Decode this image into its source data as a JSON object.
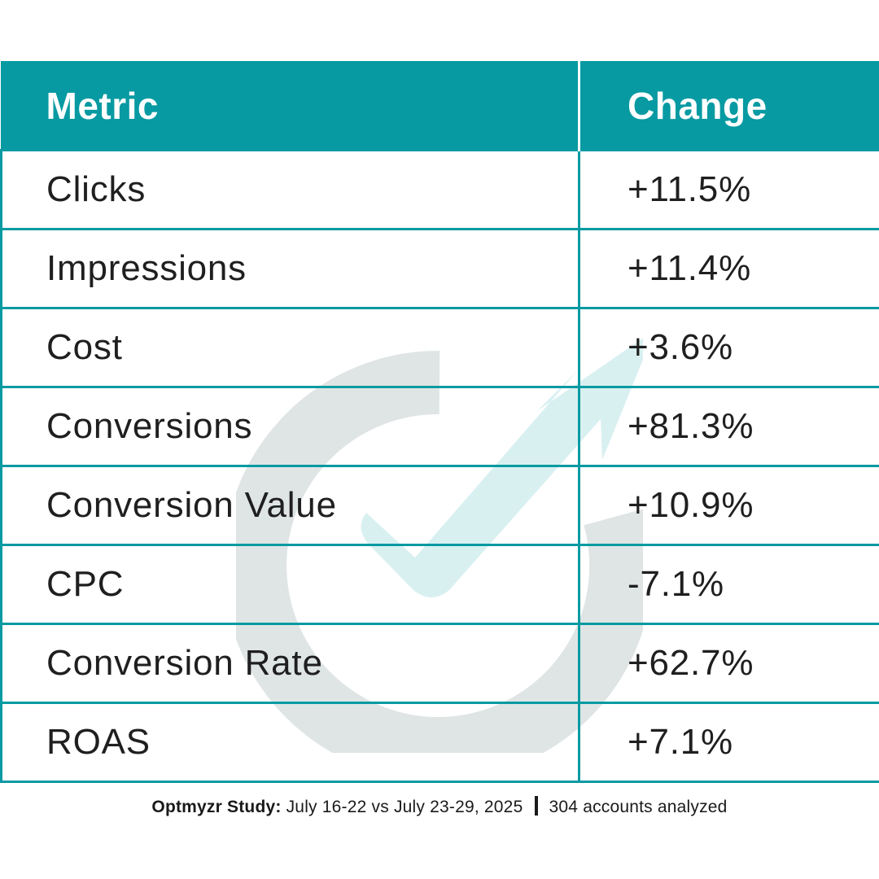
{
  "chart_data": {
    "type": "table",
    "columns": [
      "Metric",
      "Change"
    ],
    "rows": [
      {
        "metric": "Clicks",
        "change": "+11.5%"
      },
      {
        "metric": "Impressions",
        "change": "+11.4%"
      },
      {
        "metric": "Cost",
        "change": "+3.6%"
      },
      {
        "metric": "Conversions",
        "change": "+81.3%"
      },
      {
        "metric": "Conversion Value",
        "change": "+10.9%"
      },
      {
        "metric": "CPC",
        "change": "-7.1%"
      },
      {
        "metric": "Conversion Rate",
        "change": "+62.7%"
      },
      {
        "metric": "ROAS",
        "change": "+7.1%"
      }
    ]
  },
  "footer": {
    "brand": "Optmyzr Study:",
    "period": "July 16-22 vs July 23-29, 2025",
    "accounts": "304 accounts analyzed"
  },
  "watermark": {
    "icon": "optmyzr-logo-icon",
    "ring_color": "#dfe5e5",
    "arrow_color": "#d9f0f1"
  },
  "colors": {
    "accent": "#079aa2",
    "header_text": "#ffffff",
    "body_text": "#1f1f1f"
  }
}
